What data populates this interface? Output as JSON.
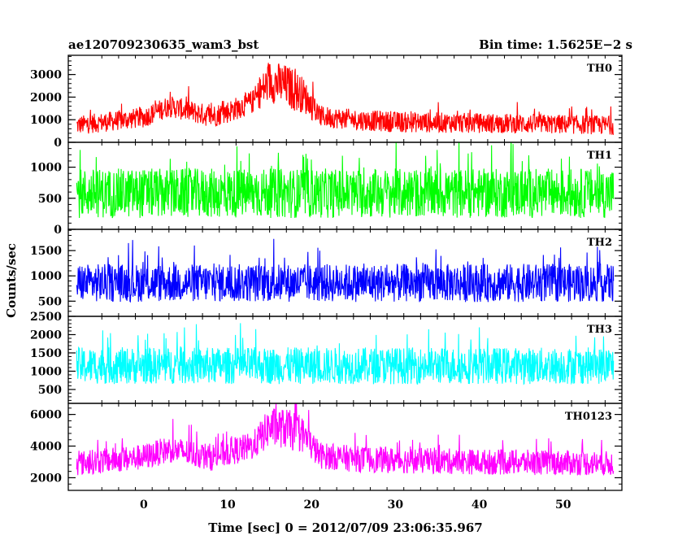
{
  "header": {
    "left_title": "ae120709230635_wam3_bst",
    "right_title": "Bin time: 1.5625E−2 s"
  },
  "chart_data": {
    "type": "line",
    "title": "ae120709230635_wam3_bst",
    "subtitle": "Bin time: 1.5625E−2 s",
    "xlabel": "Time [sec] 0 = 2012/07/09 23:06:35.967",
    "ylabel": "Counts/sec",
    "xlim": [
      -9,
      57
    ],
    "x_range_data": [
      -8,
      56
    ],
    "x_ticks": [
      0,
      10,
      20,
      30,
      40,
      50
    ],
    "x_tick_labels": [
      "0",
      "10",
      "20",
      "30",
      "40",
      "50"
    ],
    "panels": [
      {
        "name": "TH0",
        "color": "#ff0000",
        "ylim": [
          0,
          3850
        ],
        "y_ticks": [
          0,
          1000,
          2000,
          3000
        ],
        "y_tick_labels": [
          "0",
          "1000",
          "2000",
          "3000"
        ],
        "baseline": [
          [
            -8,
            750
          ],
          [
            0,
            1100
          ],
          [
            3,
            1600
          ],
          [
            8,
            1150
          ],
          [
            10,
            1350
          ],
          [
            13,
            1800
          ],
          [
            15,
            2700
          ],
          [
            17,
            2500
          ],
          [
            19,
            2100
          ],
          [
            21,
            1150
          ],
          [
            25,
            1000
          ],
          [
            30,
            900
          ],
          [
            40,
            850
          ],
          [
            50,
            800
          ],
          [
            56,
            750
          ]
        ],
        "spread": [
          [
            -8,
            400
          ],
          [
            13,
            500
          ],
          [
            15,
            900
          ],
          [
            18,
            900
          ],
          [
            21,
            450
          ],
          [
            56,
            400
          ]
        ],
        "floor": 50
      },
      {
        "name": "TH1",
        "color": "#00ff00",
        "ylim": [
          0,
          1400
        ],
        "y_ticks": [
          0,
          500,
          1000
        ],
        "y_tick_labels": [
          "0",
          "500",
          "1000"
        ],
        "baseline": [
          [
            -8,
            580
          ],
          [
            56,
            580
          ]
        ],
        "spread": [
          [
            -8,
            380
          ],
          [
            56,
            380
          ]
        ],
        "floor": 80
      },
      {
        "name": "TH2",
        "color": "#0000ff",
        "ylim": [
          200,
          1920
        ],
        "y_ticks": [
          500,
          1000,
          1500
        ],
        "y_tick_labels": [
          "500",
          "1000",
          "1500"
        ],
        "baseline": [
          [
            -8,
            860
          ],
          [
            56,
            860
          ]
        ],
        "spread": [
          [
            -8,
            360
          ],
          [
            56,
            360
          ]
        ],
        "floor": 300
      },
      {
        "name": "TH3",
        "color": "#00ffff",
        "ylim": [
          120,
          2500
        ],
        "y_ticks": [
          500,
          1000,
          1500,
          2000,
          2500
        ],
        "y_tick_labels": [
          "500",
          "1000",
          "1500",
          "2000",
          "2500"
        ],
        "baseline": [
          [
            -8,
            1150
          ],
          [
            56,
            1150
          ]
        ],
        "spread": [
          [
            -8,
            480
          ],
          [
            56,
            480
          ]
        ],
        "floor": 250
      },
      {
        "name": "TH0123",
        "color": "#ff00ff",
        "ylim": [
          1200,
          6700
        ],
        "y_ticks": [
          2000,
          4000,
          6000
        ],
        "y_tick_labels": [
          "2000",
          "4000",
          "6000"
        ],
        "baseline": [
          [
            -8,
            2900
          ],
          [
            0,
            3300
          ],
          [
            3,
            3800
          ],
          [
            8,
            3300
          ],
          [
            10,
            3600
          ],
          [
            13,
            4000
          ],
          [
            15,
            5200
          ],
          [
            17,
            5100
          ],
          [
            19,
            4700
          ],
          [
            21,
            3400
          ],
          [
            25,
            3200
          ],
          [
            30,
            3100
          ],
          [
            40,
            3000
          ],
          [
            50,
            2950
          ],
          [
            56,
            2900
          ]
        ],
        "spread": [
          [
            -8,
            750
          ],
          [
            13,
            850
          ],
          [
            15,
            1200
          ],
          [
            18,
            1200
          ],
          [
            21,
            800
          ],
          [
            56,
            750
          ]
        ],
        "floor": 1400
      }
    ]
  }
}
